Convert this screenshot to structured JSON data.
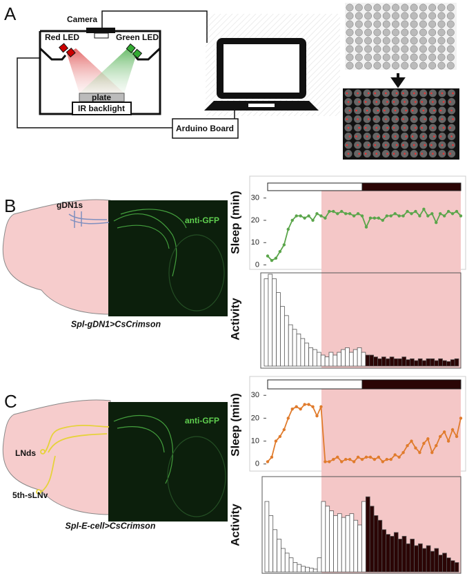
{
  "panel_labels": [
    "A",
    "B",
    "C"
  ],
  "setup": {
    "camera": "Camera",
    "red_led": "Red LED",
    "green_led": "Green LED",
    "plate": "plate",
    "ir": "IR backlight",
    "arduino": "Arduino Board"
  },
  "brains": [
    {
      "neurons": [
        "gDN1s"
      ],
      "stain": "anti-GFP",
      "genotype": "Spl-gDN1>CsCrimson"
    },
    {
      "neurons": [
        "LNds",
        "5th-sLNv"
      ],
      "stain": "anti-GFP",
      "genotype": "Spl-E-cell>CsCrimson"
    }
  ],
  "chart_data": [
    {
      "type": "line",
      "y_label": "Sleep (min)",
      "color": "#5aa54a",
      "ylim": [
        -2,
        33
      ],
      "yticks": [
        0,
        10,
        20,
        30
      ],
      "values": [
        4,
        2,
        3,
        6,
        9,
        16,
        20,
        22,
        22,
        21,
        22,
        20,
        23,
        22,
        21,
        24,
        24,
        23,
        24,
        23,
        23,
        22,
        23,
        22,
        17,
        21,
        21,
        21,
        20,
        22,
        22,
        23,
        22,
        22,
        24,
        23,
        24,
        22,
        25,
        22,
        23,
        19,
        23,
        22,
        24,
        23,
        24,
        22
      ]
    },
    {
      "type": "bar",
      "y_label": "Activity",
      "color": "#ffffff",
      "dark_color": "#2b0505",
      "ylim": [
        0,
        100
      ],
      "values": [
        95,
        100,
        95,
        80,
        65,
        55,
        45,
        40,
        35,
        30,
        25,
        20,
        18,
        15,
        12,
        10,
        15,
        12,
        15,
        18,
        20,
        15,
        18,
        20,
        15,
        12,
        12,
        10,
        8,
        10,
        8,
        10,
        8,
        8,
        10,
        7,
        8,
        6,
        8,
        6,
        8,
        8,
        6,
        8,
        6,
        5,
        7,
        8
      ]
    },
    {
      "type": "line",
      "y_label": "Sleep (min)",
      "color": "#e07b2c",
      "ylim": [
        -2.5,
        32.5
      ],
      "yticks": [
        0,
        10,
        20,
        30
      ],
      "values": [
        1,
        3,
        10,
        12,
        15,
        20,
        24,
        25,
        24,
        26,
        26,
        25,
        21,
        25,
        1,
        1,
        2,
        3,
        1,
        2,
        2,
        1,
        3,
        2,
        3,
        3,
        2,
        3,
        1,
        2,
        2,
        4,
        3,
        5,
        8,
        10,
        7,
        5,
        9,
        11,
        5,
        8,
        12,
        14,
        10,
        15,
        12,
        20
      ]
    },
    {
      "type": "bar",
      "y_label": "Activity",
      "color": "#ffffff",
      "dark_color": "#2b0505",
      "ylim": [
        0,
        100
      ],
      "values": [
        75,
        60,
        45,
        35,
        25,
        20,
        15,
        10,
        8,
        6,
        5,
        4,
        3,
        15,
        75,
        70,
        65,
        60,
        62,
        58,
        60,
        62,
        55,
        50,
        75,
        80,
        70,
        60,
        55,
        45,
        40,
        38,
        42,
        35,
        38,
        30,
        35,
        28,
        30,
        25,
        28,
        22,
        25,
        18,
        20,
        15,
        12,
        10
      ]
    }
  ]
}
